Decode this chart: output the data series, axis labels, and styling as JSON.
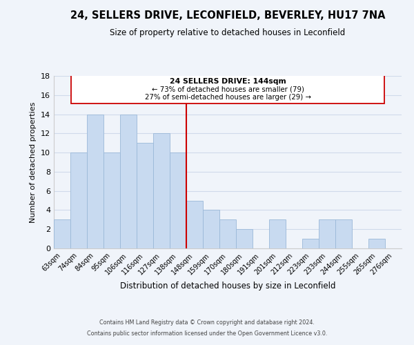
{
  "title": "24, SELLERS DRIVE, LECONFIELD, BEVERLEY, HU17 7NA",
  "subtitle": "Size of property relative to detached houses in Leconfield",
  "xlabel": "Distribution of detached houses by size in Leconfield",
  "ylabel": "Number of detached properties",
  "bin_labels": [
    "63sqm",
    "74sqm",
    "84sqm",
    "95sqm",
    "106sqm",
    "116sqm",
    "127sqm",
    "138sqm",
    "148sqm",
    "159sqm",
    "170sqm",
    "180sqm",
    "191sqm",
    "201sqm",
    "212sqm",
    "223sqm",
    "233sqm",
    "244sqm",
    "255sqm",
    "265sqm",
    "276sqm"
  ],
  "bar_heights": [
    3,
    10,
    14,
    10,
    14,
    11,
    12,
    10,
    5,
    4,
    3,
    2,
    0,
    3,
    0,
    1,
    3,
    3,
    0,
    1,
    0
  ],
  "bar_color": "#c8daf0",
  "bar_edge_color": "#9ab8d8",
  "vline_x": 7.5,
  "vline_color": "#cc0000",
  "annotation_title": "24 SELLERS DRIVE: 144sqm",
  "annotation_line1": "← 73% of detached houses are smaller (79)",
  "annotation_line2": "27% of semi-detached houses are larger (29) →",
  "annotation_box_edge": "#cc0000",
  "ylim": [
    0,
    18
  ],
  "yticks": [
    0,
    2,
    4,
    6,
    8,
    10,
    12,
    14,
    16,
    18
  ],
  "footer1": "Contains HM Land Registry data © Crown copyright and database right 2024.",
  "footer2": "Contains public sector information licensed under the Open Government Licence v3.0.",
  "bg_color": "#f0f4fa",
  "grid_color": "#d0daea",
  "title_fontsize": 10.5,
  "subtitle_fontsize": 8.5
}
